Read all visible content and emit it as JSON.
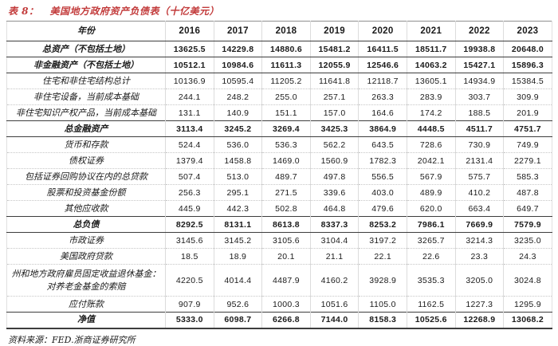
{
  "title": {
    "label": "表 8：",
    "text": "美国地方政府资产负债表（十亿美元）"
  },
  "colors": {
    "accent_red": "#c23a3a",
    "border_dark": "#3d3d3d",
    "border_light": "#dcdcdc",
    "row_divider_dotted": "#c6c6c6"
  },
  "table": {
    "header": {
      "first": "年份",
      "years": [
        "2016",
        "2017",
        "2018",
        "2019",
        "2020",
        "2021",
        "2022",
        "2023"
      ]
    },
    "rows": [
      {
        "label": "总资产（不包括土地）",
        "bold": true,
        "values": [
          "13625.5",
          "14229.8",
          "14880.6",
          "15481.2",
          "16411.5",
          "18511.7",
          "19938.8",
          "20648.0"
        ]
      },
      {
        "label": "非金融资产（不包括土地）",
        "bold": true,
        "values": [
          "10512.1",
          "10984.6",
          "11611.3",
          "12055.9",
          "12546.6",
          "14063.2",
          "15427.1",
          "15896.3"
        ]
      },
      {
        "label": "住宅和非住宅结构总计",
        "bold": false,
        "values": [
          "10136.9",
          "10595.4",
          "11205.2",
          "11641.8",
          "12118.7",
          "13605.1",
          "14934.9",
          "15384.5"
        ]
      },
      {
        "label": "非住宅设备，当前成本基础",
        "bold": false,
        "values": [
          "244.1",
          "248.2",
          "255.0",
          "257.1",
          "263.3",
          "283.9",
          "303.7",
          "309.9"
        ]
      },
      {
        "label": "非住宅知识产权产品，当前成本基础",
        "bold": false,
        "values": [
          "131.1",
          "140.9",
          "151.1",
          "157.0",
          "164.6",
          "174.2",
          "188.5",
          "201.9"
        ]
      },
      {
        "label": "总金融资产",
        "bold": true,
        "values": [
          "3113.4",
          "3245.2",
          "3269.4",
          "3425.3",
          "3864.9",
          "4448.5",
          "4511.7",
          "4751.7"
        ]
      },
      {
        "label": "货币和存款",
        "bold": false,
        "values": [
          "524.4",
          "536.0",
          "536.3",
          "562.2",
          "643.5",
          "728.6",
          "730.9",
          "749.9"
        ]
      },
      {
        "label": "债权证券",
        "bold": false,
        "values": [
          "1379.4",
          "1458.8",
          "1469.0",
          "1560.9",
          "1782.3",
          "2042.1",
          "2131.4",
          "2279.1"
        ]
      },
      {
        "label": "包括证券回购协议在内的总贷款",
        "bold": false,
        "values": [
          "507.4",
          "513.0",
          "489.7",
          "497.8",
          "556.5",
          "567.9",
          "575.7",
          "585.3"
        ]
      },
      {
        "label": "股票和投资基金份额",
        "bold": false,
        "values": [
          "256.3",
          "295.1",
          "271.5",
          "339.6",
          "403.0",
          "489.9",
          "410.2",
          "487.8"
        ]
      },
      {
        "label": "其他应收款",
        "bold": false,
        "values": [
          "445.9",
          "442.3",
          "502.8",
          "464.8",
          "479.6",
          "620.0",
          "663.4",
          "649.7"
        ]
      },
      {
        "label": "总负债",
        "bold": true,
        "values": [
          "8292.5",
          "8131.1",
          "8613.8",
          "8337.3",
          "8253.2",
          "7986.1",
          "7669.9",
          "7579.9"
        ]
      },
      {
        "label": "市政证券",
        "bold": false,
        "values": [
          "3145.6",
          "3145.2",
          "3105.6",
          "3104.4",
          "3197.2",
          "3265.7",
          "3214.3",
          "3235.0"
        ]
      },
      {
        "label": "美国政府贷款",
        "bold": false,
        "values": [
          "18.5",
          "18.9",
          "20.1",
          "21.1",
          "22.1",
          "22.6",
          "23.3",
          "24.3"
        ]
      },
      {
        "label": "州和地方政府雇员固定收益退休基金：对养老金基金的索赔",
        "bold": false,
        "tall": true,
        "values": [
          "4220.5",
          "4014.4",
          "4487.9",
          "4160.2",
          "3928.9",
          "3535.3",
          "3205.0",
          "3024.8"
        ]
      },
      {
        "label": "应付账款",
        "bold": false,
        "values": [
          "907.9",
          "952.6",
          "1000.3",
          "1051.6",
          "1105.0",
          "1162.5",
          "1227.3",
          "1295.9"
        ]
      },
      {
        "label": "净值",
        "bold": true,
        "values": [
          "5333.0",
          "6098.7",
          "6266.8",
          "7144.0",
          "8158.3",
          "10525.6",
          "12268.9",
          "13068.2"
        ]
      }
    ]
  },
  "footer": {
    "source": "资料来源：FED.浙商证券研究所"
  }
}
